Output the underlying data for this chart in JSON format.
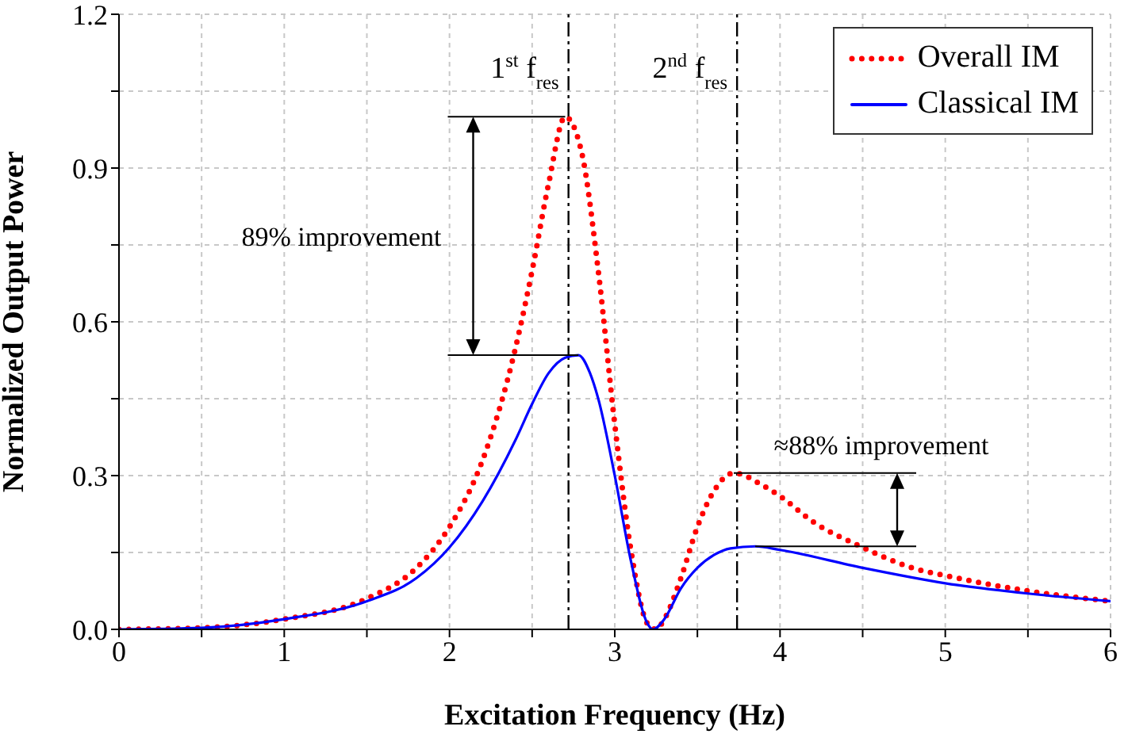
{
  "chart_data": {
    "type": "line",
    "xlabel": "Excitation Frequency (Hz)",
    "ylabel": "Normalized Output Power",
    "xlim": [
      0,
      6
    ],
    "xticks": [
      0,
      {
        "value": 0.5,
        "label": null
      },
      1,
      {
        "value": 1.5,
        "label": null
      },
      2,
      {
        "value": 2.5,
        "label": null
      },
      3,
      {
        "value": 3.5,
        "label": null
      },
      4,
      {
        "value": 4.5,
        "label": null
      },
      5,
      {
        "value": 5.5,
        "label": null
      },
      6
    ],
    "ylim": [
      0,
      1.2
    ],
    "yticks": [
      {
        "value": 0,
        "label": "0.0"
      },
      {
        "value": 0.15,
        "label": null
      },
      0.3,
      {
        "value": 0.45,
        "label": null
      },
      0.6,
      {
        "value": 0.75,
        "label": null
      },
      0.9,
      {
        "value": 1.05,
        "label": null
      },
      {
        "value": 1.2,
        "label": "1.2"
      }
    ],
    "grid": true,
    "legend": "top right",
    "marker": "none",
    "series": [
      {
        "name": "Overall IM",
        "color": "#ff0000",
        "line_style": "dotted",
        "x": [
          0,
          0.5,
          1,
          1.5,
          1.8,
          2,
          2.2,
          2.4,
          2.5,
          2.6,
          2.7,
          2.8,
          2.9,
          3,
          3.1,
          3.2,
          3.25,
          3.3,
          3.4,
          3.5,
          3.6,
          3.72,
          3.9,
          4,
          4.2,
          4.5,
          4.8,
          5,
          5.5,
          6
        ],
        "values": [
          0,
          0.003,
          0.02,
          0.06,
          0.12,
          0.2,
          0.33,
          0.55,
          0.7,
          0.87,
          1.0,
          0.93,
          0.7,
          0.4,
          0.15,
          0.01,
          0,
          0.02,
          0.1,
          0.2,
          0.27,
          0.305,
          0.28,
          0.26,
          0.21,
          0.16,
          0.12,
          0.105,
          0.075,
          0.055
        ]
      },
      {
        "name": "Classical IM",
        "color": "#0000ff",
        "line_style": "solid",
        "x": [
          0,
          0.5,
          1,
          1.5,
          1.8,
          2,
          2.2,
          2.4,
          2.5,
          2.6,
          2.7,
          2.78,
          2.85,
          2.9,
          3,
          3.1,
          3.2,
          3.23,
          3.3,
          3.4,
          3.5,
          3.6,
          3.7,
          3.85,
          4,
          4.5,
          5,
          5.5,
          6
        ],
        "values": [
          0,
          0.003,
          0.02,
          0.055,
          0.1,
          0.16,
          0.25,
          0.37,
          0.44,
          0.5,
          0.53,
          0.535,
          0.5,
          0.45,
          0.3,
          0.13,
          0.01,
          0,
          0.02,
          0.08,
          0.12,
          0.145,
          0.158,
          0.162,
          0.155,
          0.12,
          0.09,
          0.07,
          0.055
        ]
      }
    ],
    "ref_lines": [
      {
        "axis": "x",
        "value": 2.72,
        "label": "1$^{st}$ f$_{res}$",
        "color": "#000000",
        "line_style": "dashed"
      },
      {
        "axis": "x",
        "value": 3.74,
        "label": "2$^{nd}$ f$_{res}$",
        "color": "#000000",
        "line_style": "dashed"
      }
    ],
    "annotations": [
      "89% improvement",
      {
        "text": "≈88% improvement",
        "x": 3.72,
        "y": 0.305
      }
    ]
  }
}
